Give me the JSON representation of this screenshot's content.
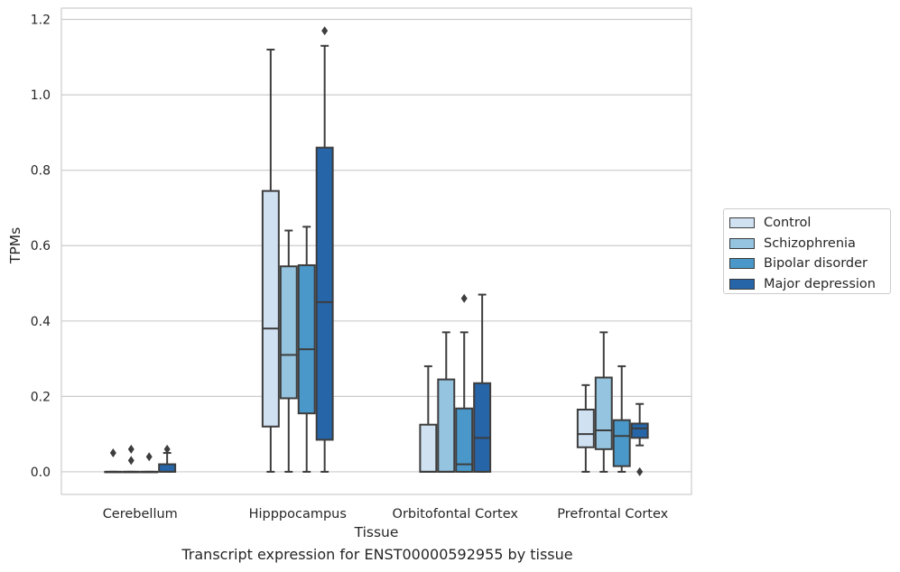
{
  "caption": "Transcript expression for ENST00000592955 by tissue",
  "colors": {
    "Control": "#d0e1f2",
    "Schizophrenia": "#94c4df",
    "Bipolar disorder": "#4a98c9",
    "Major depression": "#2565a8"
  },
  "chart_data": {
    "type": "box",
    "title": "",
    "xlabel": "Tissue",
    "ylabel": "TPMs",
    "ylim": [
      -0.06,
      1.23
    ],
    "yticks": [
      0.0,
      0.2,
      0.4,
      0.6,
      0.8,
      1.0,
      1.2
    ],
    "ytick_labels": [
      "0.0",
      "0.2",
      "0.4",
      "0.6",
      "0.8",
      "1.0",
      "1.2"
    ],
    "grid": "horizontal",
    "legend_position": "right",
    "categories": [
      "Cerebellum",
      "Hipppocampus",
      "Orbitofontal Cortex",
      "Prefrontal Cortex"
    ],
    "series": [
      {
        "name": "Control",
        "boxes": [
          {
            "whislo": 0,
            "q1": 0,
            "med": 0,
            "q3": 0,
            "whishi": 0,
            "fliers": [
              0.05
            ]
          },
          {
            "whislo": 0,
            "q1": 0.12,
            "med": 0.38,
            "q3": 0.745,
            "whishi": 1.12,
            "fliers": []
          },
          {
            "whislo": 0,
            "q1": 0,
            "med": 0,
            "q3": 0.125,
            "whishi": 0.28,
            "fliers": []
          },
          {
            "whislo": 0,
            "q1": 0.065,
            "med": 0.1,
            "q3": 0.165,
            "whishi": 0.23,
            "fliers": []
          }
        ]
      },
      {
        "name": "Schizophrenia",
        "boxes": [
          {
            "whislo": 0,
            "q1": 0,
            "med": 0,
            "q3": 0,
            "whishi": 0,
            "fliers": [
              0.06,
              0.03
            ]
          },
          {
            "whislo": 0,
            "q1": 0.195,
            "med": 0.31,
            "q3": 0.545,
            "whishi": 0.64,
            "fliers": []
          },
          {
            "whislo": 0,
            "q1": 0,
            "med": 0,
            "q3": 0.245,
            "whishi": 0.37,
            "fliers": []
          },
          {
            "whislo": 0,
            "q1": 0.06,
            "med": 0.11,
            "q3": 0.25,
            "whishi": 0.37,
            "fliers": []
          }
        ]
      },
      {
        "name": "Bipolar disorder",
        "boxes": [
          {
            "whislo": 0,
            "q1": 0,
            "med": 0,
            "q3": 0,
            "whishi": 0,
            "fliers": [
              0.04
            ]
          },
          {
            "whislo": 0,
            "q1": 0.155,
            "med": 0.325,
            "q3": 0.548,
            "whishi": 0.65,
            "fliers": []
          },
          {
            "whislo": 0,
            "q1": 0,
            "med": 0.02,
            "q3": 0.168,
            "whishi": 0.37,
            "fliers": [
              0.46
            ]
          },
          {
            "whislo": 0,
            "q1": 0.015,
            "med": 0.095,
            "q3": 0.137,
            "whishi": 0.28,
            "fliers": []
          }
        ]
      },
      {
        "name": "Major depression",
        "boxes": [
          {
            "whislo": 0,
            "q1": 0,
            "med": 0,
            "q3": 0.02,
            "whishi": 0.05,
            "fliers": [
              0.06
            ]
          },
          {
            "whislo": 0,
            "q1": 0.085,
            "med": 0.45,
            "q3": 0.86,
            "whishi": 1.13,
            "fliers": [
              1.17
            ]
          },
          {
            "whislo": 0,
            "q1": 0,
            "med": 0.09,
            "q3": 0.235,
            "whishi": 0.47,
            "fliers": []
          },
          {
            "whislo": 0.07,
            "q1": 0.09,
            "med": 0.115,
            "q3": 0.128,
            "whishi": 0.18,
            "fliers": [
              0.0
            ]
          }
        ]
      }
    ]
  }
}
